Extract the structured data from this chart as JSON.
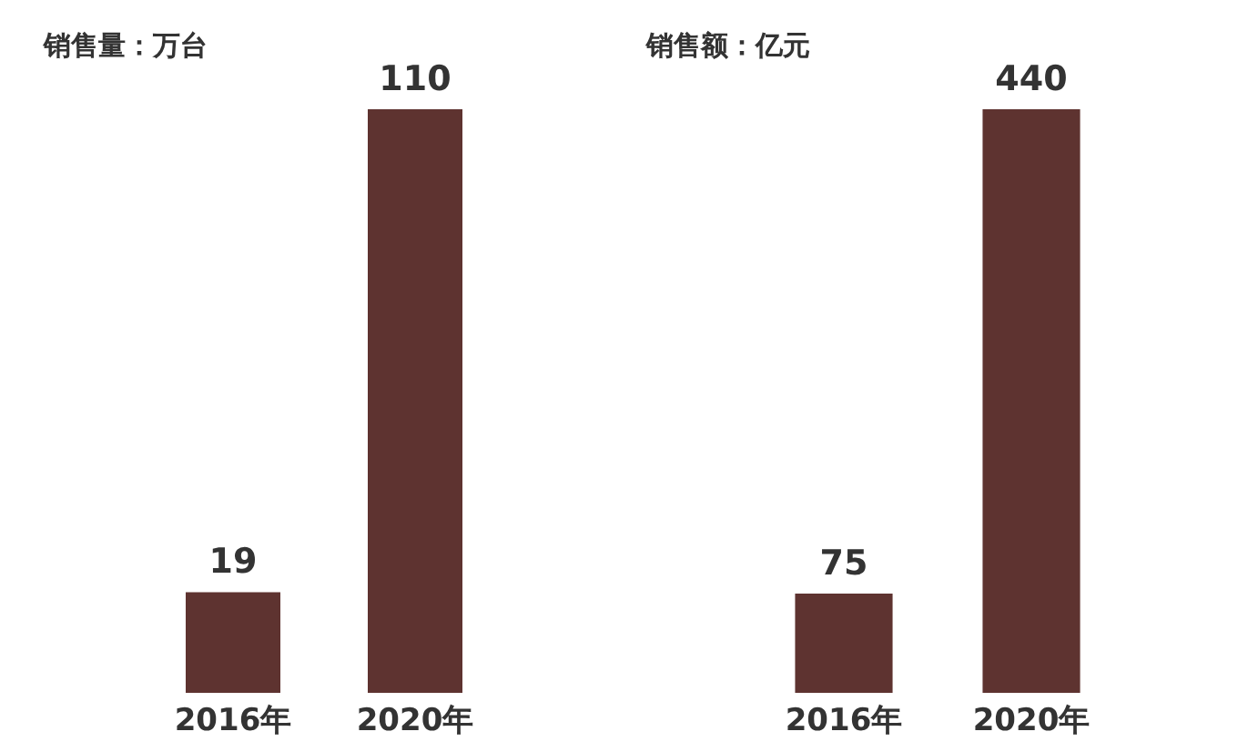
{
  "chart_data": [
    {
      "type": "bar",
      "title": "销售量：万台",
      "categories": [
        "2016年",
        "2020年"
      ],
      "values": [
        19,
        110
      ],
      "color": "#5e3330",
      "data_labels": true,
      "grid": false
    },
    {
      "type": "bar",
      "title": "销售额：亿元",
      "categories": [
        "2016年",
        "2020年"
      ],
      "values": [
        75,
        440
      ],
      "color": "#5e3330",
      "data_labels": true,
      "grid": false
    }
  ]
}
